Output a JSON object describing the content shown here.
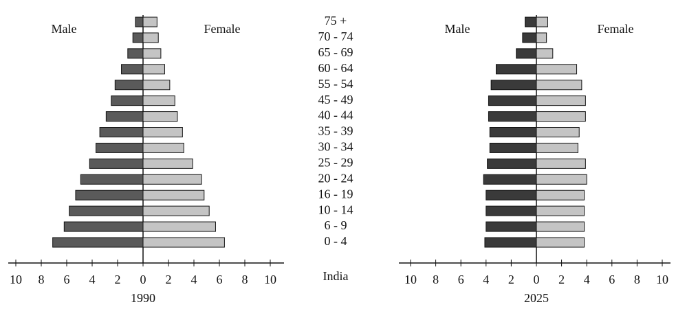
{
  "chart_data": {
    "type": "pyramid",
    "center_label": "India",
    "categories": [
      "75 +",
      "70 - 74",
      "65 - 69",
      "60 - 64",
      "55 - 54",
      "45 - 49",
      "40 - 44",
      "35 - 39",
      "30 - 34",
      "25 - 29",
      "20 - 24",
      "16 - 19",
      "10 - 14",
      "6 - 9",
      "0 - 4"
    ],
    "panels": [
      {
        "label": "1990",
        "xlim": [
          -10,
          10
        ],
        "xticks": [
          {
            "value": -10,
            "label": "10"
          },
          {
            "value": -8,
            "label": "8"
          },
          {
            "value": -6,
            "label": "6"
          },
          {
            "value": -4,
            "label": "4"
          },
          {
            "value": -2,
            "label": "2"
          },
          0,
          2,
          4,
          6,
          8,
          10
        ],
        "series": [
          {
            "name": "Male",
            "side": "left",
            "color": "#5a5a5a",
            "values": [
              0.6,
              0.8,
              1.2,
              1.7,
              2.2,
              2.5,
              2.9,
              3.4,
              3.7,
              4.2,
              4.9,
              5.3,
              5.8,
              6.2,
              7.1
            ]
          },
          {
            "name": "Female",
            "side": "right",
            "color": "#c4c4c4",
            "values": [
              1.1,
              1.2,
              1.4,
              1.7,
              2.1,
              2.5,
              2.7,
              3.1,
              3.2,
              3.9,
              4.6,
              4.8,
              5.2,
              5.7,
              6.4
            ]
          }
        ]
      },
      {
        "label": "2025",
        "xlim": [
          -10,
          10
        ],
        "xticks": [
          {
            "value": -10,
            "label": "10"
          },
          {
            "value": -8,
            "label": "8"
          },
          {
            "value": -6,
            "label": "6"
          },
          {
            "value": -4,
            "label": "4"
          },
          {
            "value": -2,
            "label": "2"
          },
          0,
          2,
          4,
          6,
          8,
          10
        ],
        "series": [
          {
            "name": "Male",
            "side": "left",
            "color": "#3a3a3a",
            "values": [
              0.9,
              1.1,
              1.6,
              3.2,
              3.6,
              3.8,
              3.8,
              3.7,
              3.7,
              3.9,
              4.2,
              4.0,
              4.0,
              4.0,
              4.1
            ]
          },
          {
            "name": "Female",
            "side": "right",
            "color": "#c4c4c4",
            "values": [
              0.9,
              0.8,
              1.3,
              3.2,
              3.6,
              3.9,
              3.9,
              3.4,
              3.3,
              3.9,
              4.0,
              3.8,
              3.8,
              3.8,
              3.8
            ]
          }
        ]
      }
    ]
  }
}
